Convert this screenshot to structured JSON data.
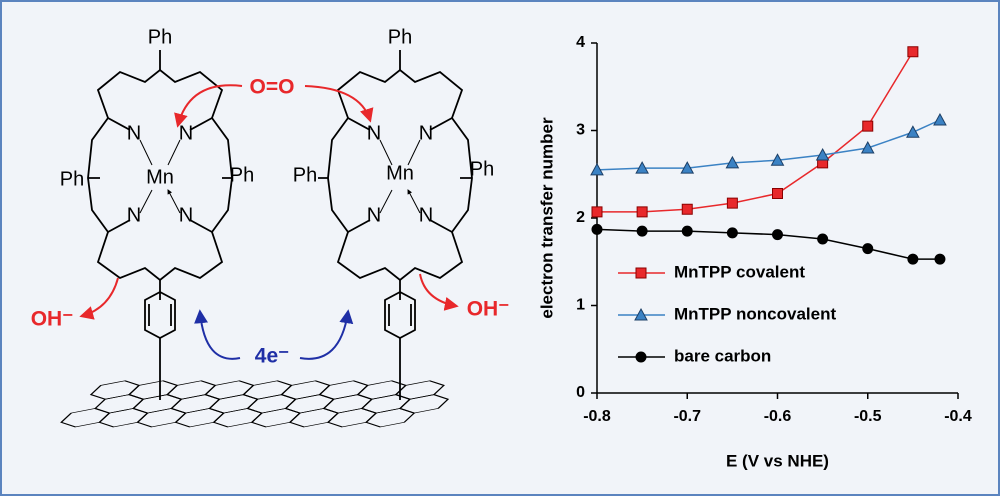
{
  "diagram": {
    "left_porphyrin": {
      "top": "Ph",
      "left": "Ph",
      "right": "Ph",
      "nitrogens": [
        "N",
        "N",
        "N",
        "N"
      ],
      "metal": "Mn",
      "product": "OH⁻"
    },
    "right_porphyrin": {
      "top": "Ph",
      "left": "Ph",
      "right": "Ph",
      "nitrogens": [
        "N",
        "N",
        "N",
        "N"
      ],
      "metal": "Mn",
      "product": "OH⁻"
    },
    "oxygen": "O=O",
    "electrons": "4e⁻"
  },
  "chart_data": {
    "type": "line",
    "x_label": "E (V vs NHE)",
    "y_label": "electron transfer number",
    "xlim": [
      -0.8,
      -0.4
    ],
    "xticks": [
      -0.8,
      -0.7,
      -0.6,
      -0.5,
      -0.4
    ],
    "ylim": [
      0,
      4
    ],
    "yticks": [
      0,
      1,
      2,
      3,
      4
    ],
    "grid": false,
    "legend": "lower-left",
    "series": [
      {
        "name": "MnTPP covalent",
        "color": "#e8282b",
        "marker": "square",
        "x": [
          -0.8,
          -0.75,
          -0.7,
          -0.65,
          -0.6,
          -0.55,
          -0.5,
          -0.45
        ],
        "values": [
          2.07,
          2.07,
          2.1,
          2.17,
          2.28,
          2.63,
          3.05,
          3.9
        ]
      },
      {
        "name": "MnTPP noncovalent",
        "color": "#3b82c4",
        "marker": "triangle",
        "x": [
          -0.8,
          -0.75,
          -0.7,
          -0.65,
          -0.6,
          -0.55,
          -0.5,
          -0.45,
          -0.42
        ],
        "values": [
          2.55,
          2.57,
          2.57,
          2.63,
          2.66,
          2.72,
          2.8,
          2.98,
          3.12
        ]
      },
      {
        "name": "bare carbon",
        "color": "#000000",
        "marker": "circle",
        "x": [
          -0.8,
          -0.75,
          -0.7,
          -0.65,
          -0.6,
          -0.55,
          -0.5,
          -0.45,
          -0.42
        ],
        "values": [
          1.87,
          1.85,
          1.85,
          1.83,
          1.81,
          1.76,
          1.65,
          1.53,
          1.53
        ]
      }
    ]
  }
}
